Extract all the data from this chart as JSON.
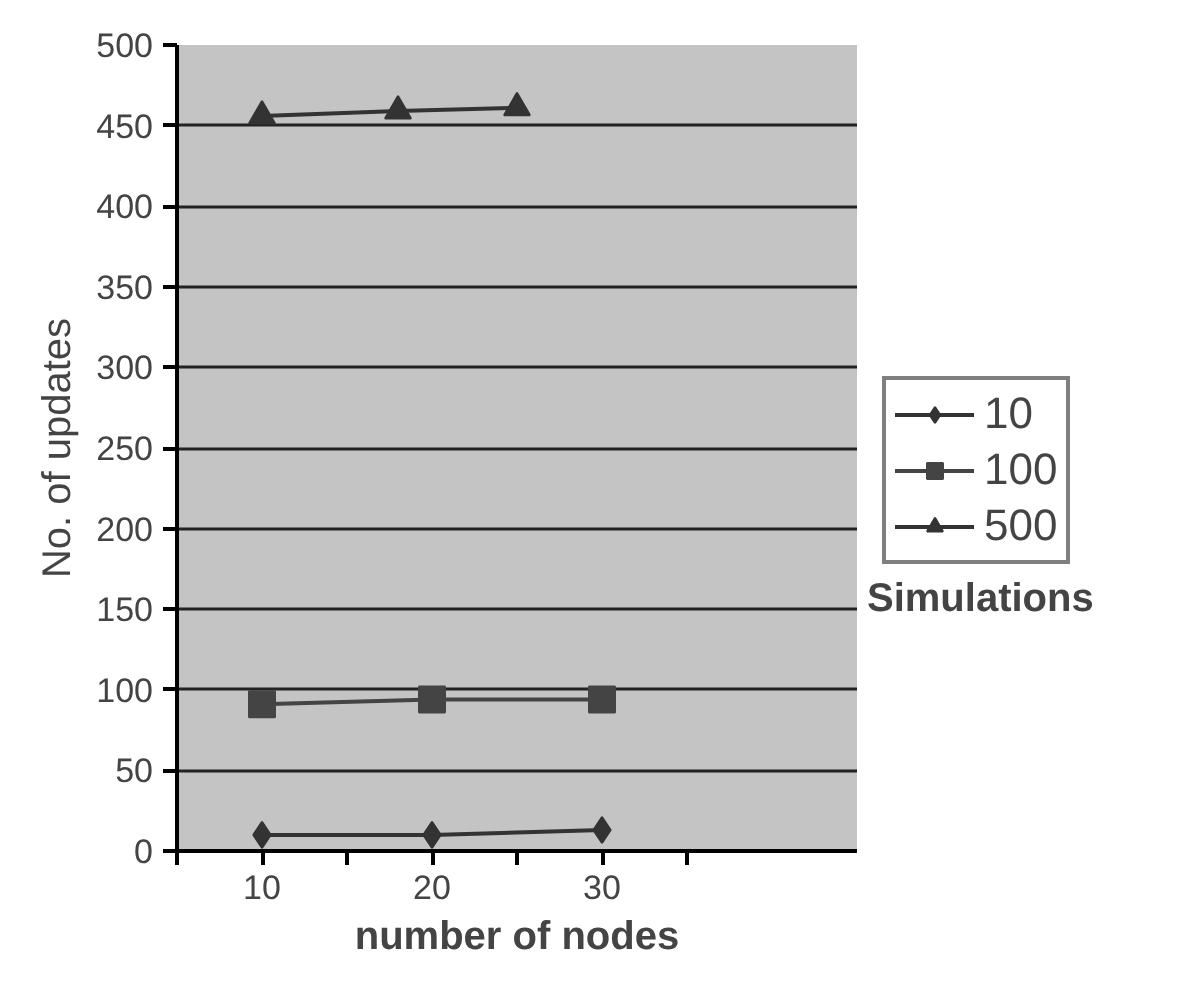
{
  "chart_data": {
    "type": "line",
    "xlabel": "number of nodes",
    "ylabel": "No. of updates",
    "legend_title": "Simulations",
    "xlim": [
      5,
      45
    ],
    "xticks": [
      {
        "value": 5,
        "label": null
      },
      10,
      {
        "value": 15,
        "label": null
      },
      20,
      {
        "value": 25,
        "label": null
      },
      30,
      {
        "value": 35,
        "label": null
      }
    ],
    "ylim": [
      0,
      500
    ],
    "yticks": [
      0,
      50,
      100,
      150,
      200,
      250,
      300,
      350,
      400,
      450,
      500
    ],
    "grid": "y",
    "legend": "right",
    "series": [
      {
        "name": "10",
        "color": "#333333",
        "marker": "diamond",
        "x": [
          10,
          20,
          30
        ],
        "values": [
          10,
          10,
          13
        ]
      },
      {
        "name": "100",
        "color": "#444444",
        "marker": "square",
        "x": [
          10,
          20,
          30
        ],
        "values": [
          91,
          94,
          94
        ]
      },
      {
        "name": "500",
        "color": "#333333",
        "marker": "triangle",
        "x": [
          10,
          18,
          25
        ],
        "values": [
          456,
          459,
          461
        ]
      }
    ]
  }
}
